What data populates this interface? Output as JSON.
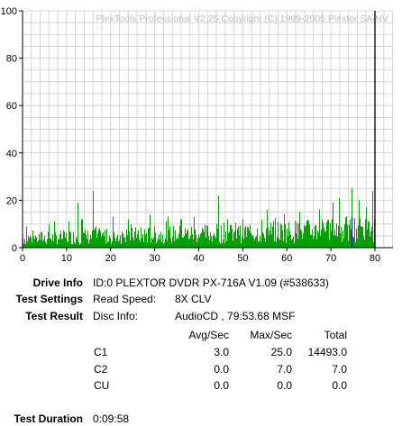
{
  "chart_data": {
    "type": "bar",
    "title": "PlexTools Professional V2.25 Copyright (C) 1999-2005 Plextor SA/NV",
    "xlabel": "",
    "ylabel": "",
    "xlim": [
      0,
      80
    ],
    "ylim": [
      0,
      100
    ],
    "x_ticks": [
      "0",
      "10",
      "20",
      "30",
      "40",
      "50",
      "60",
      "70",
      "80"
    ],
    "y_ticks": [
      "0",
      "20",
      "40",
      "60",
      "80",
      "100"
    ],
    "grid": true,
    "series": [
      {
        "color": "#00a000",
        "peak_values": [
          {
            "x": 1.0,
            "y": 9
          },
          {
            "x": 6.0,
            "y": 10
          },
          {
            "x": 10.5,
            "y": 11
          },
          {
            "x": 12.5,
            "y": 19
          },
          {
            "x": 13.5,
            "y": 12
          },
          {
            "x": 16.0,
            "y": 24
          },
          {
            "x": 20.5,
            "y": 13
          },
          {
            "x": 24.0,
            "y": 12
          },
          {
            "x": 29.0,
            "y": 14
          },
          {
            "x": 33.0,
            "y": 13
          },
          {
            "x": 36.0,
            "y": 12
          },
          {
            "x": 39.0,
            "y": 13
          },
          {
            "x": 44.5,
            "y": 22
          },
          {
            "x": 46.5,
            "y": 12
          },
          {
            "x": 50.0,
            "y": 12
          },
          {
            "x": 55.5,
            "y": 16
          },
          {
            "x": 59.5,
            "y": 14
          },
          {
            "x": 63.0,
            "y": 15
          },
          {
            "x": 67.5,
            "y": 16
          },
          {
            "x": 70.5,
            "y": 19
          },
          {
            "x": 72.0,
            "y": 21
          },
          {
            "x": 74.8,
            "y": 25
          },
          {
            "x": 76.5,
            "y": 20
          },
          {
            "x": 78.0,
            "y": 17
          },
          {
            "x": 79.5,
            "y": 24
          }
        ]
      }
    ],
    "markers": [
      {
        "x": 74.8,
        "y_top": 13,
        "color": "#1a2a8a"
      },
      {
        "x": 80.0,
        "y_top": 100,
        "color": "#000000"
      }
    ]
  },
  "info": {
    "drive_info_label": "Drive Info",
    "drive_info_value": "ID:0 PLEXTOR DVDR PX-716A V1.09 (#538633)",
    "test_settings_label": "Test Settings",
    "read_speed_label": "Read Speed:",
    "read_speed_value": "8X CLV",
    "test_result_label": "Test Result",
    "disc_info_label": "Disc Info:",
    "disc_info_value": "AudioCD , 79:53.68 MSF",
    "col_avg": "Avg/Sec",
    "col_max": "Max/Sec",
    "col_total": "Total",
    "rows": [
      {
        "name": "C1",
        "avg": "3.0",
        "max": "25.0",
        "total": "14493.0"
      },
      {
        "name": "C2",
        "avg": "0.0",
        "max": "7.0",
        "total": "7.0"
      },
      {
        "name": "CU",
        "avg": "0.0",
        "max": "0.0",
        "total": "0.0"
      }
    ],
    "test_duration_label": "Test Duration",
    "test_duration_value": "0:09:58"
  }
}
